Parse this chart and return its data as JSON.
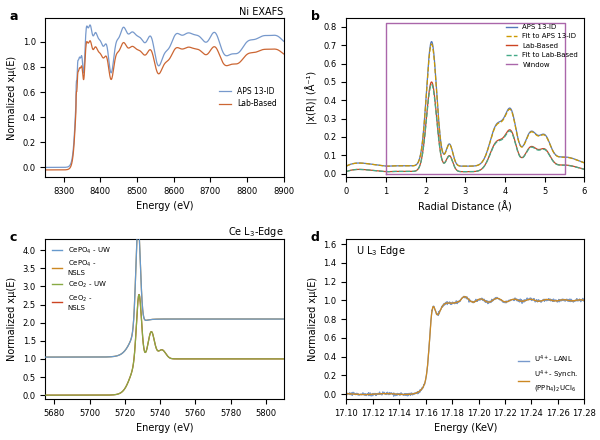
{
  "panel_a": {
    "title": "Ni EXAFS",
    "xlabel": "Energy (eV)",
    "ylabel": "Normalized xμ(E)",
    "xlim": [
      8250,
      8900
    ],
    "aps_color": "#7799cc",
    "lab_color": "#cc6633",
    "legend": [
      "APS 13-ID",
      "Lab-Based"
    ]
  },
  "panel_b": {
    "xlabel": "Radial Distance (Å)",
    "ylabel": "|x(R)| (Å⁻¹)",
    "xlim": [
      0,
      6
    ],
    "aps_color": "#5577bb",
    "fit_aps_color": "#cc9900",
    "lab_color": "#cc4422",
    "fit_lab_color": "#44aa88",
    "window_color": "#aa66aa",
    "legend": [
      "APS 13-ID",
      "Fit to APS 13-ID",
      "Lab-Based",
      "Fit to Lab-Based",
      "Window"
    ]
  },
  "panel_c": {
    "title": "Ce L$_3$-Edge",
    "xlabel": "Energy (eV)",
    "ylabel": "Normalized xμ(E)",
    "xlim": [
      5675,
      5810
    ],
    "ylim": [
      -0.1,
      4.3
    ],
    "cepo4_uw_color": "#6699cc",
    "cepo4_nsls_color": "#cc8822",
    "ceo2_uw_color": "#88aa44",
    "ceo2_nsls_color": "#cc4422",
    "legend": [
      "CePO$_4$ - UW",
      "CePO$_4$ -\nNSLS",
      "CeO$_2$ - UW",
      "CeO$_2$ -\nNSLS"
    ]
  },
  "panel_d": {
    "title": "U L$_3$ Edge",
    "xlabel": "Energy (KeV)",
    "ylabel": "Normalized xμ(E)",
    "xlim": [
      17.1,
      17.28
    ],
    "ylim": [
      -0.05,
      1.65
    ],
    "lanl_color": "#7799cc",
    "synch_color": "#cc8822",
    "legend": [
      "U$^{4+}$- LANL",
      "U$^{4+}$- Synch.\n(PPh$_4$)$_2$UCl$_6$"
    ]
  }
}
